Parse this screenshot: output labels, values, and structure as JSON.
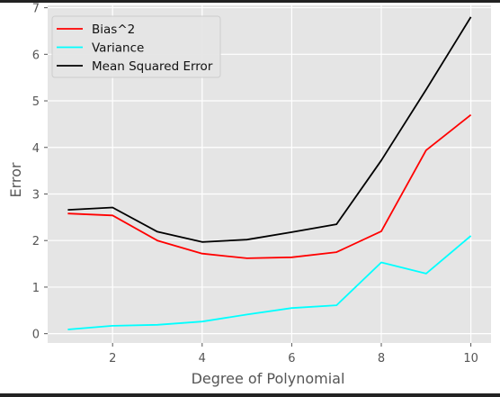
{
  "chart_data": {
    "type": "line",
    "title": "",
    "xlabel": "Degree of Polynomial",
    "ylabel": "Error",
    "x": [
      1,
      2,
      3,
      4,
      5,
      6,
      7,
      8,
      9,
      10
    ],
    "xlim": [
      0.55,
      10.45
    ],
    "ylim": [
      -0.2,
      7.05
    ],
    "xticks": [
      2,
      4,
      6,
      8,
      10
    ],
    "yticks": [
      0,
      1,
      2,
      3,
      4,
      5,
      6,
      7
    ],
    "grid": true,
    "legend_position": "top-left",
    "series": [
      {
        "name": "Bias^2",
        "color": "#ff0000",
        "values": [
          2.58,
          2.54,
          2.0,
          1.72,
          1.62,
          1.64,
          1.75,
          2.2,
          3.94,
          4.7
        ]
      },
      {
        "name": "Variance",
        "color": "#00ffff",
        "values": [
          0.09,
          0.17,
          0.19,
          0.26,
          0.41,
          0.55,
          0.61,
          1.53,
          1.29,
          2.1
        ]
      },
      {
        "name": "Mean Squared Error",
        "color": "#000000",
        "values": [
          2.66,
          2.71,
          2.19,
          1.97,
          2.02,
          2.18,
          2.35,
          3.72,
          5.24,
          6.8
        ]
      }
    ]
  }
}
